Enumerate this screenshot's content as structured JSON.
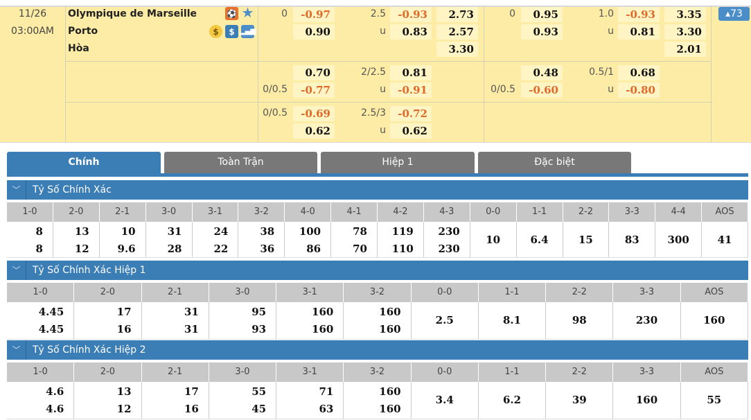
{
  "match": {
    "date": "11/26",
    "time": "03:00AM",
    "home": "Olympique de Marseille",
    "away": "Porto",
    "draw": "Hòa",
    "icons": [
      "live-player-icon",
      "star-icon",
      "coin-icon",
      "dollar-icon",
      "stats-icon"
    ],
    "more_count": "▴73"
  },
  "odds_lines": [
    {
      "ft": {
        "hdp": [
          {
            "label": "0",
            "val": "-0.97"
          },
          {
            "label": "",
            "val": "0.90"
          }
        ],
        "ou": [
          {
            "label": "2.5",
            "val": "-0.93"
          },
          {
            "label": "u",
            "val": "0.83"
          }
        ],
        "x12": [
          "2.73",
          "2.57",
          "3.30"
        ]
      },
      "ht": {
        "hdp": [
          {
            "label": "0",
            "val": "0.95"
          },
          {
            "label": "",
            "val": "0.93"
          }
        ],
        "ou": [
          {
            "label": "1.0",
            "val": "-0.93"
          },
          {
            "label": "u",
            "val": "0.81"
          }
        ],
        "x12": [
          "3.35",
          "3.30",
          "2.01"
        ]
      }
    },
    {
      "ft": {
        "hdp": [
          {
            "label": "",
            "val": "0.70"
          },
          {
            "label": "0/0.5",
            "val": "-0.77"
          }
        ],
        "ou": [
          {
            "label": "2/2.5",
            "val": "0.81"
          },
          {
            "label": "u",
            "val": "-0.91"
          }
        ],
        "x12": []
      },
      "ht": {
        "hdp": [
          {
            "label": "",
            "val": "0.48"
          },
          {
            "label": "0/0.5",
            "val": "-0.60"
          }
        ],
        "ou": [
          {
            "label": "0.5/1",
            "val": "0.68"
          },
          {
            "label": "u",
            "val": "-0.80"
          }
        ],
        "x12": []
      }
    },
    {
      "ft": {
        "hdp": [
          {
            "label": "0/0.5",
            "val": "-0.69"
          },
          {
            "label": "",
            "val": "0.62"
          }
        ],
        "ou": [
          {
            "label": "2.5/3",
            "val": "-0.72"
          },
          {
            "label": "u",
            "val": "0.62"
          }
        ],
        "x12": []
      },
      "ht": {
        "hdp": [],
        "ou": [],
        "x12": []
      }
    }
  ],
  "tabs": [
    "Chính",
    "Toàn Trận",
    "Hiệp 1",
    "Đặc biệt"
  ],
  "colors": {
    "accent": "#3b7db5",
    "negative": "#e06a2a",
    "row_bg": "#fdeca6"
  },
  "sections": [
    {
      "title": "Tỷ Số Chính Xác",
      "cols": [
        {
          "s": "1-0",
          "v": [
            "8",
            "8"
          ]
        },
        {
          "s": "2-0",
          "v": [
            "13",
            "12"
          ]
        },
        {
          "s": "2-1",
          "v": [
            "10",
            "9.6"
          ]
        },
        {
          "s": "3-0",
          "v": [
            "31",
            "28"
          ]
        },
        {
          "s": "3-1",
          "v": [
            "24",
            "22"
          ]
        },
        {
          "s": "3-2",
          "v": [
            "38",
            "36"
          ]
        },
        {
          "s": "4-0",
          "v": [
            "100",
            "86"
          ]
        },
        {
          "s": "4-1",
          "v": [
            "78",
            "70"
          ]
        },
        {
          "s": "4-2",
          "v": [
            "119",
            "110"
          ]
        },
        {
          "s": "4-3",
          "v": [
            "230",
            "230"
          ]
        },
        {
          "s": "0-0",
          "v": [
            "10"
          ]
        },
        {
          "s": "1-1",
          "v": [
            "6.4"
          ]
        },
        {
          "s": "2-2",
          "v": [
            "15"
          ]
        },
        {
          "s": "3-3",
          "v": [
            "83"
          ]
        },
        {
          "s": "4-4",
          "v": [
            "300"
          ]
        },
        {
          "s": "AOS",
          "v": [
            "41"
          ]
        }
      ]
    },
    {
      "title": "Tỷ Số Chính Xác Hiệp 1",
      "cols": [
        {
          "s": "1-0",
          "v": [
            "4.45",
            "4.45"
          ]
        },
        {
          "s": "2-0",
          "v": [
            "17",
            "16"
          ]
        },
        {
          "s": "2-1",
          "v": [
            "31",
            "31"
          ]
        },
        {
          "s": "3-0",
          "v": [
            "95",
            "93"
          ]
        },
        {
          "s": "3-1",
          "v": [
            "160",
            "160"
          ]
        },
        {
          "s": "3-2",
          "v": [
            "160",
            "160"
          ]
        },
        {
          "s": "0-0",
          "v": [
            "2.5"
          ]
        },
        {
          "s": "1-1",
          "v": [
            "8.1"
          ]
        },
        {
          "s": "2-2",
          "v": [
            "98"
          ]
        },
        {
          "s": "3-3",
          "v": [
            "230"
          ]
        },
        {
          "s": "AOS",
          "v": [
            "160"
          ]
        }
      ]
    },
    {
      "title": "Tỷ Số Chính Xác Hiệp 2",
      "cols": [
        {
          "s": "1-0",
          "v": [
            "4.6",
            "4.6"
          ]
        },
        {
          "s": "2-0",
          "v": [
            "13",
            "12"
          ]
        },
        {
          "s": "2-1",
          "v": [
            "17",
            "16"
          ]
        },
        {
          "s": "3-0",
          "v": [
            "55",
            "45"
          ]
        },
        {
          "s": "3-1",
          "v": [
            "71",
            "63"
          ]
        },
        {
          "s": "3-2",
          "v": [
            "160",
            "160"
          ]
        },
        {
          "s": "0-0",
          "v": [
            "3.4"
          ]
        },
        {
          "s": "1-1",
          "v": [
            "6.2"
          ]
        },
        {
          "s": "2-2",
          "v": [
            "39"
          ]
        },
        {
          "s": "3-3",
          "v": [
            "160"
          ]
        },
        {
          "s": "AOS",
          "v": [
            "55"
          ]
        }
      ]
    }
  ]
}
